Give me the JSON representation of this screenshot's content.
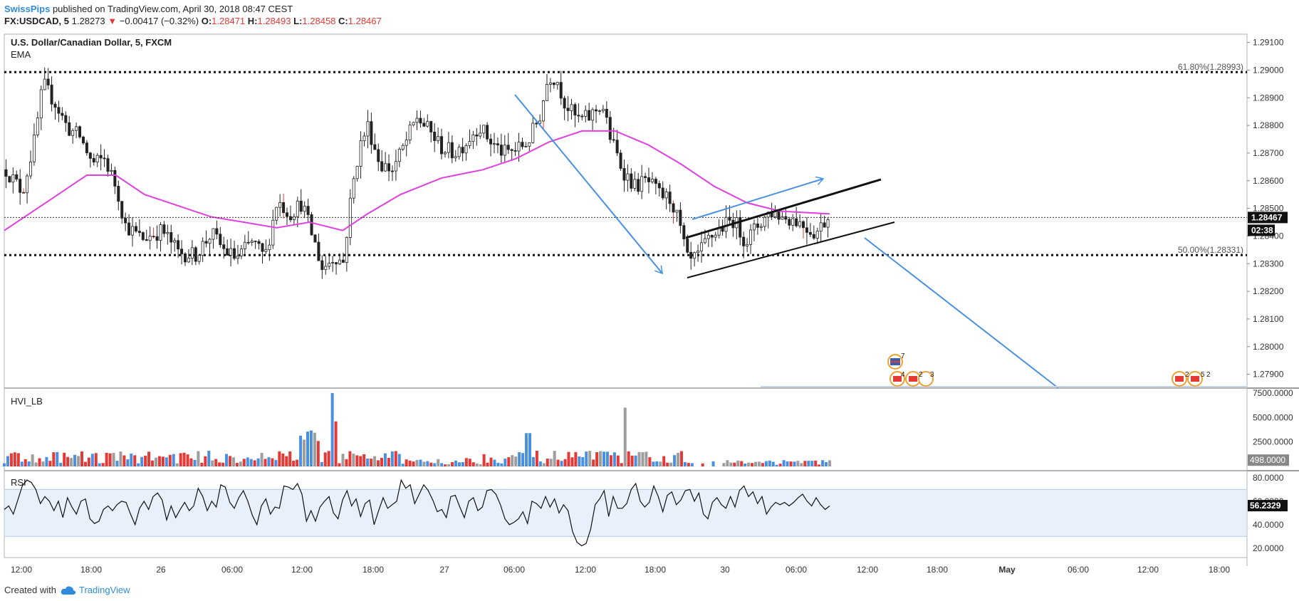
{
  "header": {
    "publisher": "SwissPips",
    "published_text": "published on TradingView.com, April 30, 2018 08:47 CEST",
    "symbol": "FX:USDCAD, 5",
    "last": "1.28273",
    "change": "−0.00417 (−0.32%)",
    "open_label": "O:",
    "open": "1.28471",
    "high_label": "H:",
    "high": "1.28493",
    "low_label": "L:",
    "low": "1.28458",
    "close_label": "C:",
    "close": "1.28467"
  },
  "colors": {
    "ema": "#e040e0",
    "arrow": "#4a90e2",
    "up": "#4a90e2",
    "down": "#e53935",
    "neutral": "#9e9e9e",
    "rsi_band": "#e8f0fc"
  },
  "chart_data": [
    {
      "type": "candlestick",
      "title": "U.S. Dollar/Canadian Dollar, 5, FXCM",
      "indicator_label": "EMA",
      "ylim": [
        1.2785,
        1.2913
      ],
      "y_ticks": [
        "1.29100",
        "1.29000",
        "1.28900",
        "1.28800",
        "1.28700",
        "1.28600",
        "1.28500",
        "1.28400",
        "1.28300",
        "1.28200",
        "1.28100",
        "1.28000",
        "1.27900"
      ],
      "last_price_badge": "1.28467",
      "countdown_badge": "02:38",
      "fib_levels": [
        {
          "label": "61.80%(1.28993)",
          "value": 1.28993
        },
        {
          "label": "50.00%(1.28331)",
          "value": 1.28331
        }
      ],
      "x_ticks": [
        "12:00",
        "18:00",
        "26",
        "06:00",
        "12:00",
        "18:00",
        "27",
        "06:00",
        "12:00",
        "18:00",
        "30",
        "06:00",
        "12:00",
        "18:00",
        "May",
        "06:00",
        "12:00",
        "18:00"
      ],
      "price_path": [
        [
          0,
          1.2864
        ],
        [
          0.02,
          1.2856
        ],
        [
          0.035,
          1.2875
        ],
        [
          0.045,
          1.2895
        ],
        [
          0.06,
          1.2888
        ],
        [
          0.075,
          1.2879
        ],
        [
          0.09,
          1.2876
        ],
        [
          0.105,
          1.2866
        ],
        [
          0.12,
          1.2868
        ],
        [
          0.135,
          1.2857
        ],
        [
          0.145,
          1.2844
        ],
        [
          0.165,
          1.2839
        ],
        [
          0.19,
          1.2842
        ],
        [
          0.21,
          1.2834
        ],
        [
          0.23,
          1.2833
        ],
        [
          0.25,
          1.2841
        ],
        [
          0.265,
          1.2835
        ],
        [
          0.28,
          1.2832
        ],
        [
          0.3,
          1.2838
        ],
        [
          0.315,
          1.2832
        ],
        [
          0.33,
          1.2853
        ],
        [
          0.345,
          1.2848
        ],
        [
          0.36,
          1.2852
        ],
        [
          0.375,
          1.2838
        ],
        [
          0.385,
          1.2828
        ],
        [
          0.4,
          1.2833
        ],
        [
          0.41,
          1.283
        ],
        [
          0.42,
          1.2855
        ],
        [
          0.43,
          1.2872
        ],
        [
          0.44,
          1.288
        ],
        [
          0.455,
          1.2866
        ],
        [
          0.47,
          1.2864
        ],
        [
          0.485,
          1.2873
        ],
        [
          0.5,
          1.2883
        ],
        [
          0.515,
          1.2878
        ],
        [
          0.53,
          1.2872
        ],
        [
          0.545,
          1.287
        ],
        [
          0.56,
          1.2874
        ],
        [
          0.575,
          1.288
        ],
        [
          0.59,
          1.2874
        ],
        [
          0.605,
          1.287
        ],
        [
          0.62,
          1.2871
        ],
        [
          0.635,
          1.2874
        ],
        [
          0.65,
          1.2884
        ],
        [
          0.66,
          1.2898
        ],
        [
          0.67,
          1.2897
        ],
        [
          0.68,
          1.2888
        ],
        [
          0.695,
          1.2882
        ],
        [
          0.71,
          1.2883
        ],
        [
          0.725,
          1.2888
        ],
        [
          0.735,
          1.2876
        ],
        [
          0.75,
          1.2864
        ],
        [
          0.765,
          1.2858
        ],
        [
          0.78,
          1.286
        ],
        [
          0.795,
          1.2855
        ],
        [
          0.81,
          1.2853
        ],
        [
          0.82,
          1.2843
        ],
        [
          0.83,
          1.283
        ],
        [
          0.84,
          1.2832
        ],
        [
          0.855,
          1.2839
        ],
        [
          0.87,
          1.2843
        ],
        [
          0.885,
          1.2846
        ],
        [
          0.9,
          1.2838
        ],
        [
          0.915,
          1.2844
        ],
        [
          0.93,
          1.2849
        ],
        [
          0.945,
          1.2847
        ],
        [
          0.96,
          1.2846
        ],
        [
          0.975,
          1.2843
        ],
        [
          0.985,
          1.2841
        ],
        [
          1,
          1.2847
        ]
      ],
      "ema_path": [
        [
          0,
          1.2842
        ],
        [
          0.05,
          1.2852
        ],
        [
          0.1,
          1.2862
        ],
        [
          0.135,
          1.2862
        ],
        [
          0.17,
          1.2855
        ],
        [
          0.21,
          1.2851
        ],
        [
          0.25,
          1.2847
        ],
        [
          0.29,
          1.2845
        ],
        [
          0.33,
          1.2843
        ],
        [
          0.37,
          1.2845
        ],
        [
          0.41,
          1.2842
        ],
        [
          0.44,
          1.2848
        ],
        [
          0.48,
          1.2855
        ],
        [
          0.53,
          1.2861
        ],
        [
          0.58,
          1.2864
        ],
        [
          0.62,
          1.2868
        ],
        [
          0.66,
          1.2874
        ],
        [
          0.7,
          1.2878
        ],
        [
          0.74,
          1.2878
        ],
        [
          0.78,
          1.2873
        ],
        [
          0.82,
          1.2866
        ],
        [
          0.86,
          1.2858
        ],
        [
          0.9,
          1.2852
        ],
        [
          0.94,
          1.2849
        ],
        [
          1,
          1.2848
        ]
      ]
    },
    {
      "type": "bar",
      "title": "HVI_LB",
      "ylim": [
        0,
        8000
      ],
      "y_ticks": [
        "7500.0000",
        "5000.0000",
        "2500.0000"
      ],
      "last_value_badge": "498.0000"
    },
    {
      "type": "line",
      "title": "RSI",
      "ylim": [
        12,
        86
      ],
      "band": [
        30,
        70
      ],
      "y_ticks": [
        "80.0000",
        "60.0000",
        "40.0000",
        "20.0000"
      ],
      "last_value_badge": "56.2329",
      "values": [
        53,
        56,
        49,
        61,
        73,
        78,
        76,
        70,
        58,
        64,
        60,
        52,
        60,
        46,
        63,
        55,
        49,
        60,
        62,
        45,
        41,
        43,
        53,
        56,
        52,
        57,
        60,
        59,
        49,
        40,
        54,
        60,
        53,
        64,
        67,
        61,
        44,
        56,
        46,
        53,
        59,
        52,
        56,
        71,
        64,
        52,
        60,
        55,
        74,
        72,
        59,
        54,
        63,
        69,
        60,
        48,
        40,
        56,
        62,
        49,
        55,
        54,
        73,
        72,
        70,
        75,
        66,
        43,
        52,
        43,
        55,
        60,
        64,
        50,
        45,
        61,
        69,
        56,
        62,
        47,
        58,
        61,
        40,
        52,
        63,
        54,
        57,
        60,
        78,
        71,
        74,
        58,
        66,
        74,
        69,
        61,
        51,
        53,
        46,
        64,
        65,
        55,
        46,
        60,
        63,
        52,
        55,
        69,
        70,
        66,
        57,
        45,
        40,
        42,
        45,
        51,
        41,
        60,
        58,
        54,
        64,
        55,
        62,
        50,
        57,
        52,
        34,
        25,
        22,
        24,
        36,
        57,
        62,
        69,
        47,
        64,
        54,
        54,
        58,
        70,
        75,
        60,
        55,
        59,
        73,
        64,
        51,
        65,
        68,
        57,
        61,
        69,
        70,
        60,
        67,
        49,
        45,
        59,
        63,
        57,
        54,
        64,
        55,
        69,
        73,
        64,
        68,
        58,
        64,
        49,
        55,
        59,
        57,
        59,
        56,
        59,
        63,
        66,
        60,
        56,
        63,
        57,
        53,
        56
      ]
    }
  ],
  "footer": {
    "created_with": "Created with",
    "brand": "TradingView"
  }
}
